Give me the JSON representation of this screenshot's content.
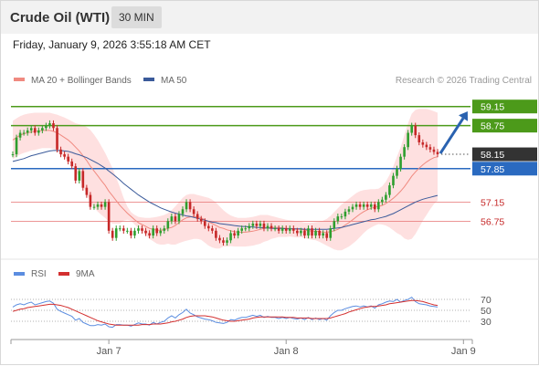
{
  "header": {
    "title": "Crude Oil (WTI)",
    "timeframe": "30 MIN"
  },
  "datetime": "Friday, January 9, 2026 3:55:18 AM CET",
  "colors": {
    "bull": "#2e9e2e",
    "bear": "#c62828",
    "ma20": "#f08a80",
    "ma50": "#3a5a9a",
    "band": "#fdd5d5",
    "resistance": "#4c9a1a",
    "support": "#e57373",
    "pivot": "#2a6ac0",
    "arrow": "#2a62b0",
    "rsi": "#5b8de0",
    "rsi_ma": "#d32f2f"
  },
  "chart_data": [
    {
      "type": "candlestick",
      "legend": [
        {
          "name": "MA 20 + Bollinger Bands",
          "color": "#f08a80"
        },
        {
          "name": "MA 50",
          "color": "#3a5a9a"
        }
      ],
      "attribution": "Research © 2026 Trading Central",
      "x_ticks": [
        {
          "label": "Jan 7",
          "index": 26
        },
        {
          "label": "Jan 8",
          "index": 74
        },
        {
          "label": "Jan 9",
          "index": 122
        }
      ],
      "ylim": [
        56.05,
        59.45
      ],
      "horizontal_levels": [
        {
          "value": 59.15,
          "label": "59.15",
          "kind": "resistance"
        },
        {
          "value": 58.75,
          "label": "58.75",
          "kind": "resistance"
        },
        {
          "value": 58.15,
          "label": "58.15",
          "kind": "last"
        },
        {
          "value": 57.85,
          "label": "57.85",
          "kind": "pivot"
        },
        {
          "value": 57.15,
          "label": "57.15",
          "kind": "support"
        },
        {
          "value": 56.75,
          "label": "56.75",
          "kind": "support"
        }
      ],
      "closes": [
        58.15,
        58.5,
        58.6,
        58.6,
        58.65,
        58.7,
        58.6,
        58.65,
        58.7,
        58.75,
        58.8,
        58.7,
        58.25,
        58.15,
        58.1,
        58,
        57.9,
        57.6,
        57.8,
        57.45,
        57.3,
        57.05,
        57.05,
        57.1,
        57.05,
        57.15,
        56.55,
        56.4,
        56.6,
        56.6,
        56.55,
        56.55,
        56.45,
        56.55,
        56.6,
        56.55,
        56.5,
        56.45,
        56.6,
        56.5,
        56.55,
        56.6,
        56.75,
        56.85,
        56.75,
        56.9,
        57.0,
        57.15,
        57.0,
        56.9,
        56.8,
        56.75,
        56.65,
        56.6,
        56.55,
        56.4,
        56.35,
        56.3,
        56.35,
        56.5,
        56.45,
        56.55,
        56.6,
        56.6,
        56.65,
        56.7,
        56.65,
        56.7,
        56.6,
        56.65,
        56.6,
        56.6,
        56.55,
        56.6,
        56.55,
        56.6,
        56.55,
        56.5,
        56.55,
        56.45,
        56.6,
        56.45,
        56.55,
        56.45,
        56.5,
        56.4,
        56.6,
        56.75,
        56.85,
        56.85,
        56.95,
        57.0,
        57.05,
        57.1,
        57.05,
        57.1,
        57.05,
        57.1,
        57.0,
        57.15,
        57.2,
        57.3,
        57.5,
        57.7,
        57.85,
        58.1,
        58.3,
        58.6,
        58.75,
        58.55,
        58.4,
        58.35,
        58.3,
        58.25,
        58.2,
        58.15
      ],
      "ma20": [
        58.45,
        58.5,
        58.55,
        58.58,
        58.6,
        58.62,
        58.63,
        58.64,
        58.65,
        58.65,
        58.65,
        58.63,
        58.6,
        58.55,
        58.5,
        58.45,
        58.38,
        58.3,
        58.22,
        58.12,
        58.02,
        57.9,
        57.8,
        57.7,
        57.6,
        57.5,
        57.38,
        57.28,
        57.18,
        57.08,
        57.0,
        56.92,
        56.85,
        56.78,
        56.72,
        56.68,
        56.64,
        56.6,
        56.58,
        56.56,
        56.56,
        56.57,
        56.6,
        56.62,
        56.66,
        56.72,
        56.78,
        56.82,
        56.84,
        56.85,
        56.84,
        56.82,
        56.78,
        56.74,
        56.7,
        56.66,
        56.62,
        56.6,
        56.57,
        56.55,
        56.53,
        56.52,
        56.52,
        56.52,
        56.53,
        56.54,
        56.56,
        56.58,
        56.6,
        56.61,
        56.62,
        56.62,
        56.62,
        56.61,
        56.6,
        56.6,
        56.59,
        56.58,
        56.58,
        56.56,
        56.55,
        56.54,
        56.54,
        56.53,
        56.52,
        56.52,
        56.53,
        56.55,
        56.58,
        56.62,
        56.67,
        56.72,
        56.78,
        56.84,
        56.9,
        56.95,
        56.99,
        57.02,
        57.04,
        57.06,
        57.08,
        57.12,
        57.17,
        57.23,
        57.3,
        57.38,
        57.47,
        57.58,
        57.69,
        57.78,
        57.86,
        57.93,
        57.99,
        58.04,
        58.08,
        58.1
      ],
      "upper_band": [
        58.85,
        58.9,
        58.95,
        58.98,
        59.0,
        59.01,
        59.02,
        59.02,
        59.02,
        59.02,
        59.02,
        59.0,
        58.98,
        58.95,
        58.92,
        58.88,
        58.84,
        58.8,
        58.78,
        58.76,
        58.72,
        58.66,
        58.56,
        58.45,
        58.32,
        58.18,
        58.02,
        57.86,
        57.66,
        57.46,
        57.24,
        57.06,
        56.94,
        56.88,
        56.84,
        56.83,
        56.82,
        56.82,
        56.83,
        56.84,
        56.86,
        56.88,
        56.92,
        56.98,
        57.06,
        57.15,
        57.24,
        57.3,
        57.32,
        57.32,
        57.3,
        57.28,
        57.26,
        57.24,
        57.2,
        57.14,
        57.06,
        56.98,
        56.92,
        56.87,
        56.84,
        56.82,
        56.82,
        56.82,
        56.83,
        56.84,
        56.86,
        56.88,
        56.88,
        56.88,
        56.86,
        56.84,
        56.82,
        56.8,
        56.78,
        56.77,
        56.76,
        56.75,
        56.74,
        56.72,
        56.72,
        56.72,
        56.73,
        56.74,
        56.76,
        56.8,
        56.86,
        56.94,
        57.02,
        57.1,
        57.16,
        57.22,
        57.28,
        57.34,
        57.38,
        57.4,
        57.41,
        57.42,
        57.42,
        57.43,
        57.48,
        57.58,
        57.72,
        57.9,
        58.1,
        58.3,
        58.55,
        58.8,
        59.0,
        59.08,
        59.1,
        59.1,
        59.1,
        59.08,
        59.05,
        59.02
      ],
      "lower_band": [
        58.05,
        58.1,
        58.15,
        58.18,
        58.2,
        58.23,
        58.24,
        58.26,
        58.28,
        58.28,
        58.28,
        58.26,
        58.22,
        58.15,
        58.08,
        58.02,
        57.92,
        57.8,
        57.66,
        57.48,
        57.32,
        57.14,
        57.04,
        56.95,
        56.88,
        56.82,
        56.74,
        56.7,
        56.7,
        56.7,
        56.76,
        56.78,
        56.76,
        56.68,
        56.6,
        56.53,
        56.46,
        56.38,
        56.33,
        56.28,
        56.26,
        56.26,
        56.28,
        56.26,
        56.26,
        56.29,
        56.32,
        56.34,
        56.36,
        56.38,
        56.38,
        56.36,
        56.3,
        56.24,
        56.2,
        56.18,
        56.18,
        56.22,
        56.22,
        56.23,
        56.22,
        56.22,
        56.22,
        56.22,
        56.23,
        56.24,
        56.26,
        56.28,
        56.32,
        56.34,
        56.38,
        56.4,
        56.42,
        56.42,
        56.42,
        56.43,
        56.42,
        56.41,
        56.42,
        56.4,
        56.38,
        56.36,
        56.35,
        56.32,
        56.28,
        56.24,
        56.2,
        56.16,
        56.14,
        56.14,
        56.18,
        56.22,
        56.28,
        56.34,
        56.42,
        56.5,
        56.57,
        56.62,
        56.66,
        56.69,
        56.68,
        56.66,
        56.62,
        56.56,
        56.5,
        56.46,
        56.39,
        56.36,
        56.38,
        56.48,
        56.62,
        56.76,
        56.88,
        57.0,
        57.11,
        57.18
      ],
      "ma50": [
        58.0,
        58.02,
        58.04,
        58.06,
        58.09,
        58.12,
        58.14,
        58.16,
        58.18,
        58.2,
        58.22,
        58.23,
        58.23,
        58.23,
        58.22,
        58.21,
        58.19,
        58.16,
        58.14,
        58.11,
        58.08,
        58.04,
        58.0,
        57.96,
        57.91,
        57.86,
        57.8,
        57.74,
        57.68,
        57.61,
        57.54,
        57.48,
        57.42,
        57.36,
        57.3,
        57.25,
        57.2,
        57.15,
        57.11,
        57.07,
        57.03,
        57.0,
        56.97,
        56.94,
        56.92,
        56.9,
        56.88,
        56.86,
        56.85,
        56.83,
        56.81,
        56.79,
        56.77,
        56.75,
        56.73,
        56.72,
        56.7,
        56.69,
        56.68,
        56.67,
        56.66,
        56.65,
        56.64,
        56.64,
        56.63,
        56.63,
        56.62,
        56.62,
        56.61,
        56.61,
        56.6,
        56.6,
        56.6,
        56.6,
        56.59,
        56.59,
        56.59,
        56.59,
        56.59,
        56.58,
        56.58,
        56.58,
        56.58,
        56.58,
        56.58,
        56.58,
        56.59,
        56.6,
        56.61,
        56.62,
        56.64,
        56.66,
        56.68,
        56.7,
        56.72,
        56.74,
        56.76,
        56.78,
        56.79,
        56.81,
        56.83,
        56.85,
        56.88,
        56.91,
        56.95,
        56.99,
        57.03,
        57.07,
        57.11,
        57.15,
        57.18,
        57.21,
        57.23,
        57.25,
        57.27,
        57.29
      ]
    },
    {
      "type": "line",
      "legend": [
        {
          "name": "RSI",
          "color": "#5b8de0"
        },
        {
          "name": "9MA",
          "color": "#d32f2f"
        }
      ],
      "y_ticks": [
        70,
        50,
        30
      ],
      "ylim": [
        5,
        95
      ],
      "series": [
        {
          "name": "RSI",
          "values": [
            56,
            60,
            62,
            60,
            63,
            65,
            60,
            62,
            64,
            66,
            67,
            63,
            52,
            48,
            45,
            42,
            39,
            32,
            35,
            28,
            25,
            22,
            22,
            24,
            23,
            25,
            20,
            19,
            24,
            24,
            23,
            23,
            21,
            24,
            27,
            25,
            25,
            23,
            28,
            25,
            28,
            30,
            36,
            40,
            36,
            42,
            46,
            52,
            45,
            42,
            38,
            36,
            34,
            33,
            31,
            28,
            27,
            26,
            28,
            33,
            32,
            35,
            37,
            37,
            39,
            41,
            39,
            41,
            37,
            39,
            37,
            37,
            35,
            37,
            35,
            37,
            35,
            34,
            36,
            33,
            37,
            33,
            36,
            33,
            35,
            32,
            40,
            46,
            50,
            50,
            53,
            55,
            57,
            58,
            56,
            58,
            56,
            58,
            54,
            60,
            62,
            65,
            67,
            66,
            70,
            65,
            68,
            70,
            74,
            66,
            62,
            61,
            60,
            58,
            57,
            56
          ]
        },
        {
          "name": "9MA",
          "values": [
            48,
            50,
            52,
            53,
            55,
            56,
            57,
            58,
            59,
            60,
            61,
            61,
            60,
            59,
            57,
            55,
            52,
            49,
            46,
            43,
            40,
            37,
            34,
            31,
            29,
            27,
            25,
            24,
            23,
            23,
            23,
            23,
            23,
            23,
            23,
            24,
            24,
            24,
            25,
            25,
            25,
            26,
            27,
            29,
            30,
            32,
            34,
            37,
            39,
            40,
            40,
            40,
            40,
            39,
            38,
            36,
            34,
            32,
            31,
            30,
            30,
            31,
            32,
            33,
            34,
            36,
            37,
            38,
            38,
            38,
            38,
            38,
            38,
            38,
            37,
            37,
            37,
            36,
            36,
            36,
            36,
            35,
            35,
            35,
            35,
            35,
            36,
            38,
            40,
            42,
            44,
            47,
            49,
            51,
            53,
            55,
            56,
            57,
            57,
            58,
            59,
            60,
            62,
            63,
            64,
            65,
            66,
            67,
            68,
            68,
            67,
            66,
            64,
            62,
            60,
            59
          ]
        }
      ]
    }
  ]
}
